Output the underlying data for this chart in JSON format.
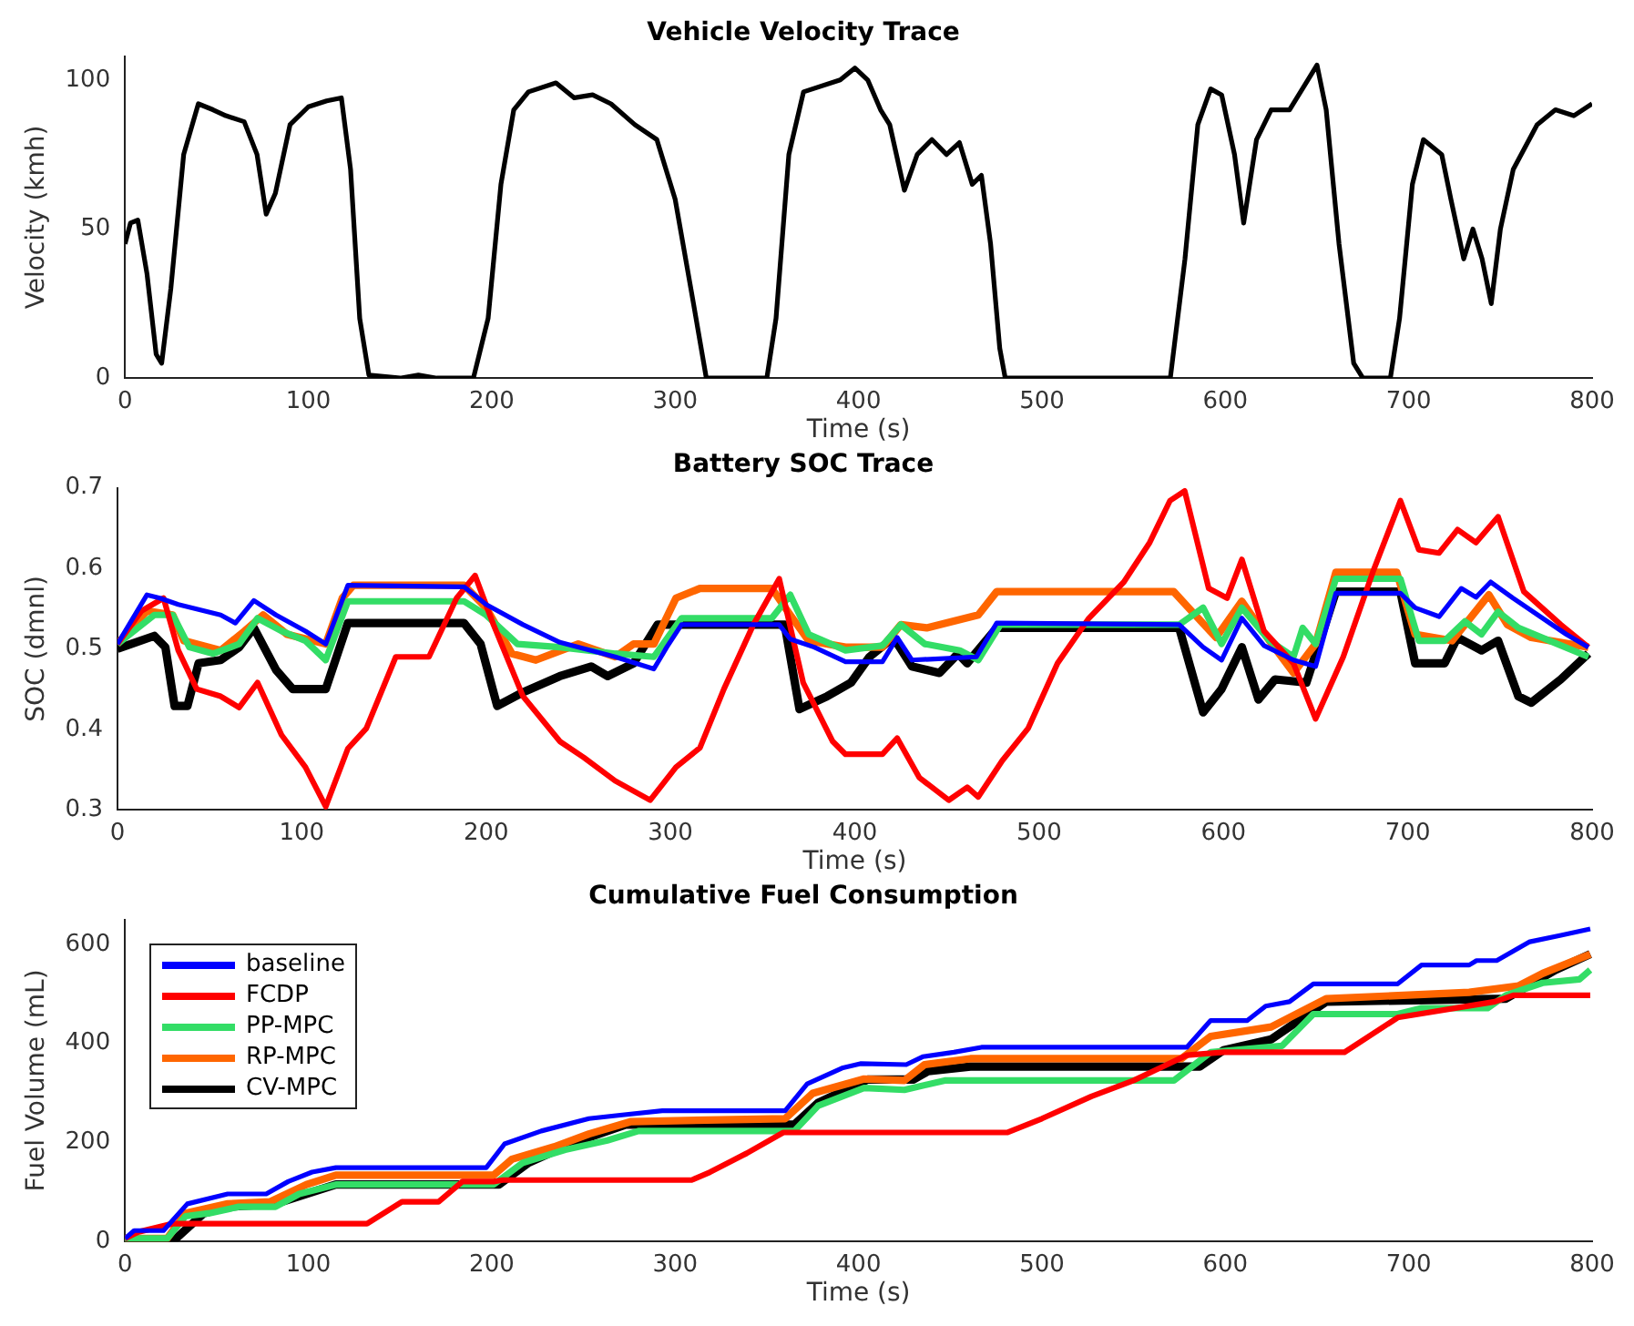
{
  "chart_data": [
    {
      "type": "line",
      "title": "Vehicle Velocity Trace",
      "xlabel": "Time (s)",
      "ylabel": "Velocity (kmh)",
      "xlim": [
        0,
        800
      ],
      "xticks": [
        0,
        100,
        200,
        300,
        400,
        500,
        600,
        700,
        800
      ],
      "ylim": [
        0,
        108
      ],
      "yticks": [
        0,
        50,
        100
      ],
      "grid": false,
      "legend": false,
      "series": [
        {
          "color": "#000000",
          "x": [
            0,
            3,
            7,
            12,
            17,
            20,
            25,
            32,
            40,
            48,
            55,
            65,
            72,
            77,
            82,
            90,
            100,
            110,
            118,
            123,
            128,
            133,
            150,
            160,
            170,
            190,
            198,
            205,
            212,
            220,
            235,
            245,
            255,
            265,
            278,
            290,
            300,
            310,
            317,
            340,
            350,
            355,
            362,
            370,
            390,
            398,
            405,
            412,
            417,
            425,
            432,
            440,
            448,
            455,
            462,
            467,
            472,
            477,
            480,
            570,
            578,
            585,
            592,
            598,
            605,
            610,
            617,
            625,
            635,
            645,
            650,
            655,
            662,
            670,
            675,
            690,
            695,
            702,
            708,
            718,
            723,
            730,
            735,
            740,
            745,
            750,
            757,
            770,
            780,
            790,
            800
          ],
          "values": [
            45,
            52,
            53,
            35,
            8,
            5,
            30,
            75,
            92,
            90,
            88,
            86,
            75,
            55,
            62,
            85,
            91,
            93,
            94,
            70,
            20,
            1,
            0,
            1,
            0,
            0,
            20,
            65,
            90,
            96,
            99,
            94,
            95,
            92,
            85,
            80,
            60,
            25,
            0,
            0,
            0,
            20,
            75,
            96,
            100,
            104,
            100,
            90,
            85,
            63,
            75,
            80,
            75,
            79,
            65,
            68,
            45,
            10,
            0,
            0,
            40,
            85,
            97,
            95,
            75,
            52,
            80,
            90,
            90,
            100,
            105,
            90,
            45,
            5,
            0,
            0,
            20,
            65,
            80,
            75,
            60,
            40,
            50,
            40,
            25,
            50,
            70,
            85,
            90,
            88,
            92
          ]
        }
      ]
    },
    {
      "type": "line",
      "title": "Battery SOC Trace",
      "xlabel": "Time (s)",
      "ylabel": "SOC (dmnl)",
      "xlim": [
        0,
        800
      ],
      "xticks": [
        0,
        100,
        200,
        300,
        400,
        500,
        600,
        700,
        800
      ],
      "ylim": [
        0.3,
        0.7
      ],
      "yticks": [
        0.3,
        0.4,
        0.5,
        0.6,
        0.7
      ],
      "grid": false,
      "legend": false,
      "series": [
        {
          "color": "#0000ff",
          "x": [
            0,
            16,
            23,
            33,
            56,
            64,
            74,
            86,
            102,
            113,
            125,
            188,
            200,
            220,
            240,
            270,
            291,
            298,
            306,
            359,
            365,
            378,
            395,
            415,
            423,
            431,
            466,
            477,
            576,
            589,
            599,
            610,
            622,
            638,
            650,
            661,
            696,
            704,
            717,
            729,
            737,
            745,
            757,
            786,
            798
          ],
          "values": [
            0.506,
            0.567,
            0.563,
            0.555,
            0.542,
            0.532,
            0.56,
            0.542,
            0.522,
            0.506,
            0.579,
            0.577,
            0.555,
            0.53,
            0.508,
            0.49,
            0.475,
            0.502,
            0.53,
            0.53,
            0.512,
            0.502,
            0.484,
            0.484,
            0.514,
            0.486,
            0.49,
            0.532,
            0.53,
            0.502,
            0.486,
            0.538,
            0.504,
            0.486,
            0.478,
            0.569,
            0.569,
            0.551,
            0.54,
            0.575,
            0.564,
            0.583,
            0.563,
            0.518,
            0.502
          ]
        },
        {
          "color": "#ff0000",
          "x": [
            0,
            13,
            25,
            33,
            43,
            56,
            66,
            76,
            89,
            102,
            113,
            125,
            135,
            151,
            169,
            184,
            194,
            204,
            220,
            240,
            253,
            270,
            289,
            303,
            316,
            329,
            345,
            359,
            372,
            388,
            395,
            415,
            423,
            435,
            451,
            461,
            467,
            480,
            494,
            510,
            527,
            546,
            560,
            571,
            579,
            592,
            602,
            610,
            622,
            638,
            650,
            665,
            681,
            696,
            706,
            717,
            727,
            737,
            749,
            763,
            783,
            798
          ],
          "values": [
            0.506,
            0.547,
            0.563,
            0.498,
            0.45,
            0.441,
            0.427,
            0.458,
            0.393,
            0.353,
            0.304,
            0.376,
            0.401,
            0.49,
            0.49,
            0.563,
            0.591,
            0.53,
            0.441,
            0.385,
            0.365,
            0.336,
            0.312,
            0.353,
            0.377,
            0.45,
            0.53,
            0.587,
            0.458,
            0.385,
            0.369,
            0.369,
            0.389,
            0.34,
            0.312,
            0.328,
            0.316,
            0.361,
            0.401,
            0.482,
            0.538,
            0.583,
            0.632,
            0.684,
            0.696,
            0.575,
            0.563,
            0.611,
            0.522,
            0.482,
            0.413,
            0.49,
            0.595,
            0.684,
            0.623,
            0.619,
            0.648,
            0.632,
            0.664,
            0.571,
            0.53,
            0.502
          ]
        },
        {
          "color": "#33dd66",
          "x": [
            0,
            20,
            30,
            39,
            52,
            66,
            76,
            89,
            102,
            113,
            125,
            188,
            200,
            217,
            240,
            270,
            291,
            306,
            355,
            365,
            375,
            395,
            415,
            425,
            438,
            457,
            467,
            479,
            576,
            589,
            599,
            610,
            625,
            638,
            643,
            650,
            661,
            696,
            706,
            720,
            731,
            740,
            749,
            760,
            777,
            798
          ],
          "values": [
            0.506,
            0.542,
            0.542,
            0.502,
            0.494,
            0.506,
            0.538,
            0.522,
            0.51,
            0.486,
            0.559,
            0.559,
            0.542,
            0.506,
            0.502,
            0.494,
            0.49,
            0.538,
            0.538,
            0.567,
            0.518,
            0.498,
            0.504,
            0.53,
            0.506,
            0.498,
            0.486,
            0.53,
            0.53,
            0.551,
            0.506,
            0.551,
            0.51,
            0.49,
            0.526,
            0.506,
            0.587,
            0.587,
            0.51,
            0.51,
            0.534,
            0.518,
            0.546,
            0.526,
            0.51,
            0.49
          ]
        },
        {
          "color": "#ff6600",
          "x": [
            0,
            16,
            30,
            36,
            56,
            69,
            79,
            92,
            113,
            122,
            128,
            188,
            200,
            214,
            227,
            250,
            270,
            280,
            291,
            303,
            316,
            355,
            365,
            375,
            395,
            415,
            425,
            439,
            467,
            477,
            573,
            581,
            596,
            610,
            625,
            638,
            650,
            661,
            694,
            704,
            724,
            744,
            754,
            767,
            798
          ],
          "values": [
            0.506,
            0.547,
            0.542,
            0.51,
            0.498,
            0.522,
            0.542,
            0.518,
            0.506,
            0.563,
            0.579,
            0.579,
            0.551,
            0.494,
            0.486,
            0.506,
            0.49,
            0.506,
            0.506,
            0.563,
            0.575,
            0.575,
            0.542,
            0.51,
            0.502,
            0.502,
            0.53,
            0.526,
            0.542,
            0.571,
            0.571,
            0.551,
            0.514,
            0.559,
            0.51,
            0.47,
            0.506,
            0.595,
            0.595,
            0.518,
            0.51,
            0.567,
            0.53,
            0.514,
            0.502
          ]
        },
        {
          "color": "#000000",
          "x": [
            0,
            20,
            26,
            31,
            38,
            44,
            56,
            66,
            74,
            86,
            95,
            113,
            125,
            188,
            197,
            206,
            220,
            240,
            257,
            266,
            280,
            293,
            362,
            370,
            385,
            398,
            408,
            421,
            431,
            446,
            456,
            461,
            477,
            576,
            589,
            599,
            610,
            619,
            628,
            645,
            661,
            696,
            704,
            720,
            727,
            740,
            749,
            760,
            767,
            783,
            798
          ],
          "values": [
            0.5,
            0.516,
            0.502,
            0.429,
            0.429,
            0.482,
            0.486,
            0.502,
            0.526,
            0.474,
            0.45,
            0.45,
            0.532,
            0.532,
            0.506,
            0.429,
            0.446,
            0.466,
            0.478,
            0.466,
            0.482,
            0.53,
            0.53,
            0.425,
            0.441,
            0.458,
            0.49,
            0.514,
            0.478,
            0.47,
            0.494,
            0.482,
            0.526,
            0.526,
            0.421,
            0.45,
            0.502,
            0.437,
            0.462,
            0.458,
            0.571,
            0.571,
            0.482,
            0.482,
            0.514,
            0.498,
            0.51,
            0.441,
            0.433,
            0.462,
            0.494
          ]
        }
      ]
    },
    {
      "type": "line",
      "title": "Cumulative Fuel Consumption",
      "xlabel": "Time (s)",
      "ylabel": "Fuel Volume (mL)",
      "xlim": [
        0,
        800
      ],
      "xticks": [
        0,
        100,
        200,
        300,
        400,
        500,
        600,
        700,
        800
      ],
      "ylim": [
        0,
        650
      ],
      "yticks": [
        0,
        200,
        400,
        600
      ],
      "grid": false,
      "legend": "top left",
      "series": [
        {
          "name": "baseline",
          "color": "#0000ff",
          "x": [
            0,
            5,
            21,
            34,
            56,
            77,
            89,
            102,
            115,
            197,
            207,
            227,
            253,
            270,
            293,
            360,
            372,
            391,
            401,
            426,
            435,
            452,
            467,
            579,
            592,
            612,
            622,
            635,
            648,
            694,
            707,
            733,
            737,
            748,
            766,
            783,
            799
          ],
          "values": [
            6,
            22,
            22,
            76,
            96,
            96,
            121,
            140,
            149,
            149,
            197,
            223,
            248,
            255,
            264,
            264,
            318,
            350,
            359,
            357,
            373,
            382,
            392,
            392,
            446,
            446,
            475,
            484,
            520,
            520,
            558,
            558,
            567,
            567,
            605,
            618,
            631
          ]
        },
        {
          "name": "FCDP",
          "color": "#ff0000",
          "x": [
            0,
            7,
            26,
            132,
            151,
            171,
            184,
            201,
            206,
            309,
            319,
            339,
            359,
            481,
            500,
            527,
            550,
            579,
            599,
            665,
            694,
            747,
            757,
            799
          ],
          "values": [
            6,
            19,
            36,
            36,
            80,
            80,
            121,
            121,
            124,
            124,
            140,
            178,
            220,
            220,
            248,
            293,
            325,
            376,
            382,
            382,
            452,
            484,
            497,
            497
          ]
        },
        {
          "name": "PP-MPC",
          "color": "#33dd66",
          "x": [
            0,
            23,
            33,
            46,
            62,
            82,
            95,
            115,
            201,
            217,
            240,
            263,
            280,
            365,
            378,
            403,
            425,
            447,
            572,
            592,
            631,
            648,
            694,
            707,
            743,
            753,
            773,
            793,
            799
          ],
          "values": [
            6,
            6,
            51,
            57,
            70,
            70,
            96,
            115,
            115,
            159,
            185,
            204,
            223,
            223,
            274,
            310,
            306,
            325,
            325,
            382,
            395,
            459,
            459,
            471,
            471,
            497,
            522,
            529,
            548
          ]
        },
        {
          "name": "RP-MPC",
          "color": "#ff6600",
          "x": [
            0,
            23,
            33,
            56,
            79,
            99,
            115,
            201,
            211,
            234,
            253,
            276,
            360,
            375,
            403,
            425,
            436,
            461,
            576,
            592,
            625,
            655,
            733,
            760,
            773,
            799
          ],
          "values": [
            6,
            6,
            57,
            76,
            80,
            115,
            134,
            134,
            166,
            191,
            217,
            242,
            248,
            299,
            328,
            325,
            357,
            369,
            369,
            414,
            433,
            490,
            503,
            516,
            541,
            580
          ]
        },
        {
          "name": "CV-MPC",
          "color": "#000000",
          "x": [
            0,
            26,
            43,
            56,
            82,
            115,
            204,
            220,
            243,
            273,
            365,
            378,
            405,
            430,
            438,
            461,
            586,
            599,
            625,
            655,
            753,
            780,
            799
          ],
          "values": [
            0,
            0,
            57,
            70,
            76,
            115,
            115,
            159,
            197,
            236,
            236,
            280,
            327,
            327,
            344,
            353,
            353,
            386,
            408,
            484,
            490,
            548,
            580
          ]
        }
      ]
    }
  ]
}
